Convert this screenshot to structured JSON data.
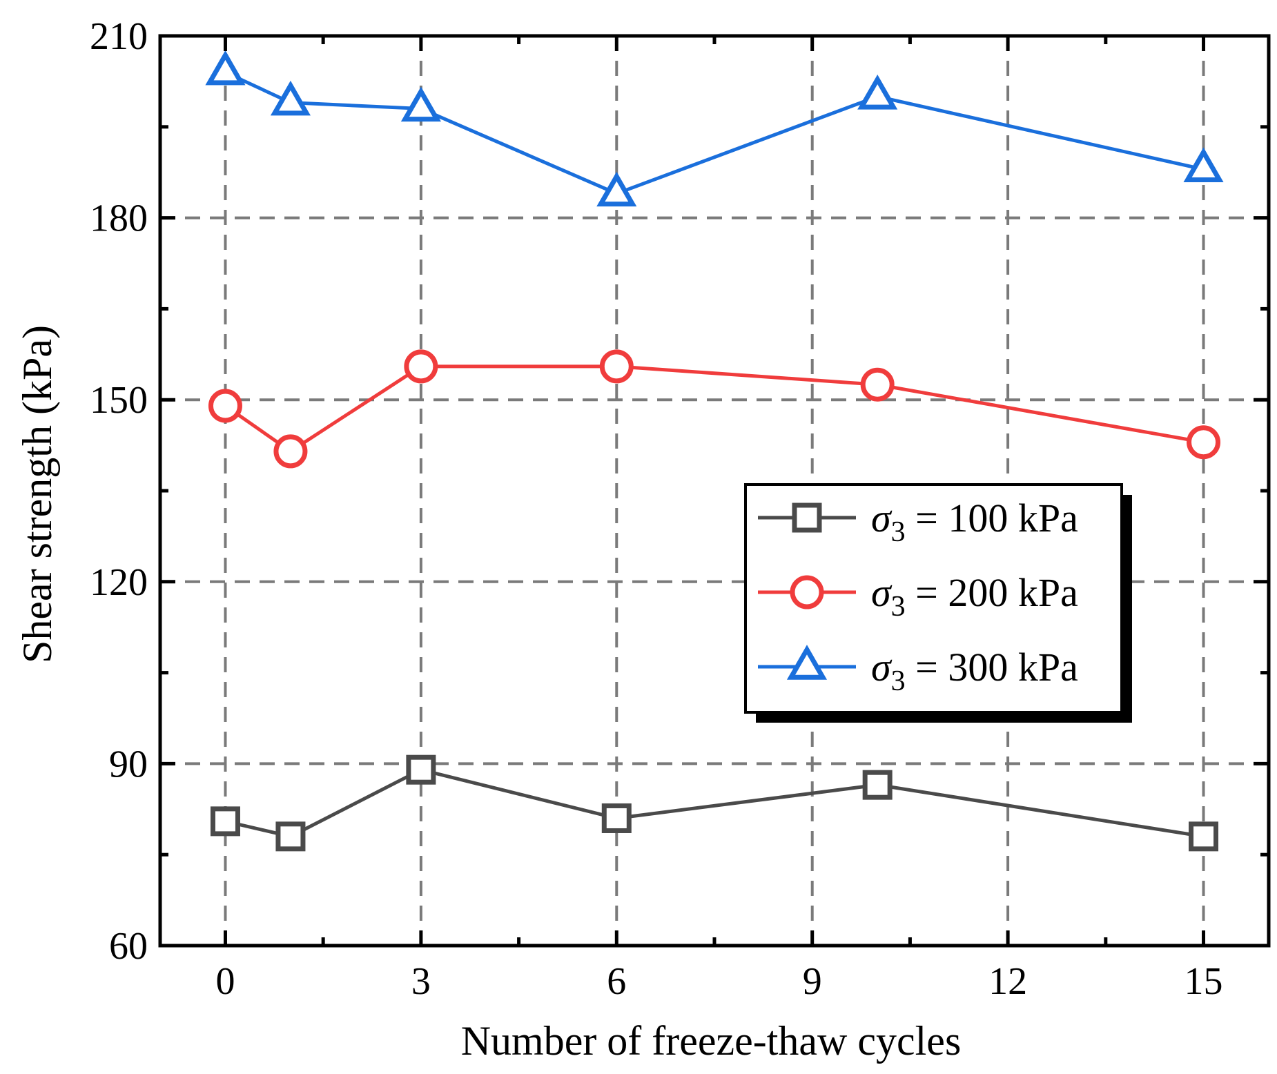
{
  "chart_data": {
    "type": "line",
    "xlabel": "Number of freeze-thaw cycles",
    "ylabel": "Shear strength (kPa)",
    "xlim": [
      -1,
      16
    ],
    "ylim": [
      60,
      210
    ],
    "x_ticks": [
      0,
      3,
      6,
      9,
      12,
      15
    ],
    "y_ticks": [
      60,
      90,
      120,
      150,
      180,
      210
    ],
    "grid": true,
    "legend_position": "center-right",
    "series": [
      {
        "name_symbol": "σ",
        "name_subscript": "3",
        "name_rest": " = 100 kPa",
        "marker": "square",
        "color": "#4a4a4a",
        "x": [
          0,
          1,
          3,
          6,
          10,
          15
        ],
        "y": [
          80.5,
          78,
          89,
          81,
          86.5,
          78
        ]
      },
      {
        "name_symbol": "σ",
        "name_subscript": "3",
        "name_rest": " = 200 kPa",
        "marker": "circle",
        "color": "#f03c3c",
        "x": [
          0,
          1,
          3,
          6,
          10,
          15
        ],
        "y": [
          149,
          141.5,
          155.5,
          155.5,
          152.5,
          143
        ]
      },
      {
        "name_symbol": "σ",
        "name_subscript": "3",
        "name_rest": " = 300 kPa",
        "marker": "triangle",
        "color": "#1a6fdc",
        "x": [
          0,
          1,
          3,
          6,
          10,
          15
        ],
        "y": [
          204,
          199,
          198,
          184,
          200,
          188
        ]
      }
    ]
  }
}
